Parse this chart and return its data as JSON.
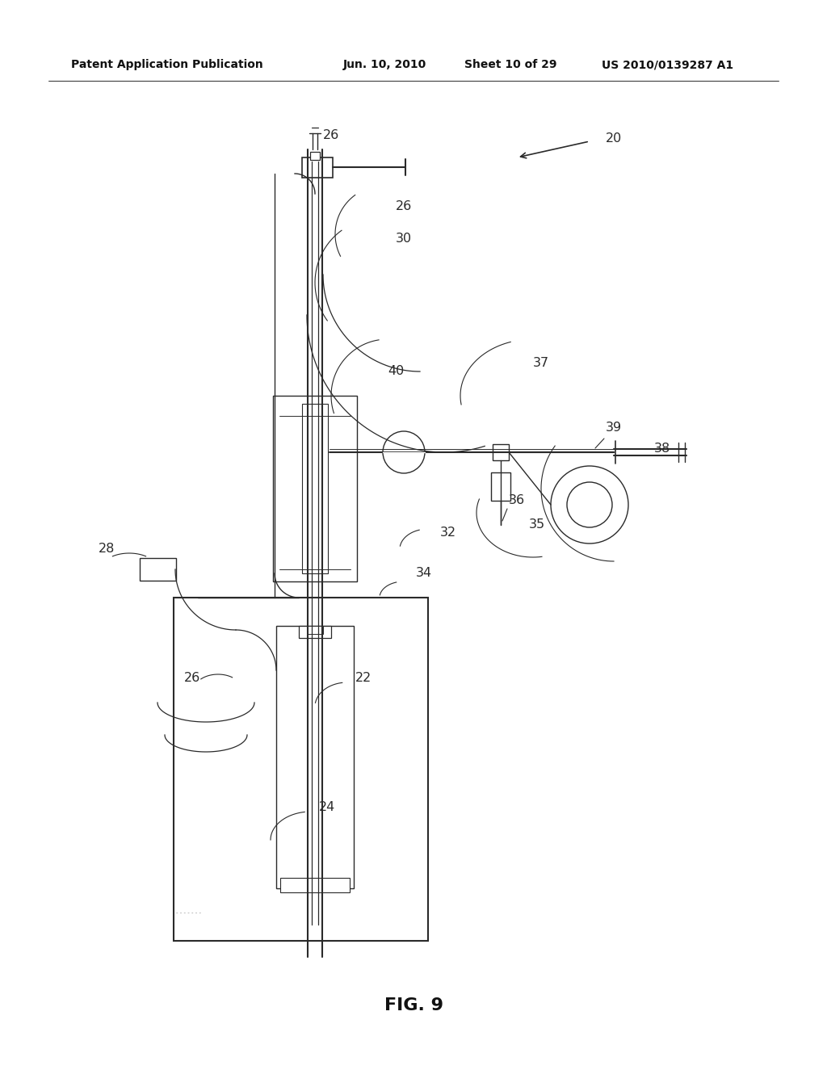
{
  "bg_color": "#ffffff",
  "line_color": "#2a2a2a",
  "header_text": "Patent Application Publication",
  "header_date": "Jun. 10, 2010",
  "header_sheet": "Sheet 10 of 29",
  "header_patent": "US 2010/0139287 A1",
  "fig_label": "FIG. 9",
  "page_width": 1.0,
  "page_height": 1.0
}
